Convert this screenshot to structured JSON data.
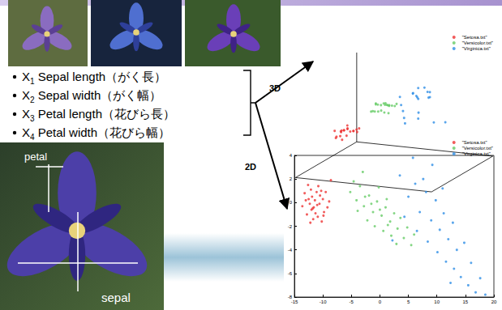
{
  "features": [
    {
      "symbol": "X",
      "index": "1",
      "label": "Sepal length（がく長）"
    },
    {
      "symbol": "X",
      "index": "2",
      "label": "Sepal width（がく幅）"
    },
    {
      "symbol": "X",
      "index": "3",
      "label": "Petal length（花びら長）"
    },
    {
      "symbol": "X",
      "index": "4",
      "label": "Petal width（花びら幅）"
    }
  ],
  "arrows": [
    "3D",
    "2D"
  ],
  "photo_labels": {
    "petal": "petal",
    "sepal": "sepal"
  },
  "chart_data": [
    {
      "type": "scatter3d",
      "legend": "upper right",
      "tick_labels": false,
      "xlim": [
        -15,
        20
      ],
      "ylim": [
        -6,
        4
      ],
      "zlim": [
        -25,
        20
      ],
      "series": [
        {
          "name": "\"Setosa.txt\"",
          "color": "#ee3333",
          "points": [
            [
              -12.5,
              0.3,
              -12
            ],
            [
              -11.8,
              -0.5,
              -10.5
            ],
            [
              -13.2,
              0.8,
              -13
            ],
            [
              -10.9,
              -1.2,
              -9.5
            ],
            [
              -12.1,
              1.1,
              -14
            ],
            [
              -11.4,
              0.2,
              -11
            ],
            [
              -9.8,
              -0.8,
              -8.5
            ],
            [
              -10.5,
              0.6,
              -12.5
            ],
            [
              -12.8,
              -1.0,
              -10
            ],
            [
              -11.0,
              -0.2,
              -13.5
            ],
            [
              -9.5,
              0.9,
              -11.5
            ],
            [
              -13.6,
              -0.3,
              -15
            ],
            [
              -10.2,
              -1.6,
              -9
            ],
            [
              -11.7,
              -1.4,
              -12
            ],
            [
              -12.3,
              -0.1,
              -16
            ],
            [
              -8.9,
              0.1,
              -10.5
            ],
            [
              -10.8,
              1.4,
              -14.5
            ],
            [
              -11.9,
              0.5,
              -9.8
            ],
            [
              -12.0,
              -0.6,
              -13.2
            ],
            [
              -10.0,
              0.3,
              -11.8
            ]
          ]
        },
        {
          "name": "\"Versicolor.txt\"",
          "color": "#66cc66",
          "points": [
            [
              -5.2,
              0.9,
              2
            ],
            [
              -4.1,
              0.2,
              3
            ],
            [
              -3.5,
              1.4,
              1.5
            ],
            [
              -2.8,
              -0.3,
              4
            ],
            [
              -1.9,
              0.6,
              2.5
            ],
            [
              -1.2,
              -0.8,
              5
            ],
            [
              -0.5,
              0.1,
              3.5
            ],
            [
              0.3,
              -1.1,
              6
            ],
            [
              1.0,
              -0.4,
              4.5
            ],
            [
              1.8,
              -1.6,
              7
            ],
            [
              2.5,
              -0.9,
              5.5
            ],
            [
              3.1,
              -2.2,
              8
            ],
            [
              -3.9,
              -0.7,
              1
            ],
            [
              -2.2,
              -1.5,
              3
            ],
            [
              -0.9,
              -2.0,
              4
            ],
            [
              0.6,
              -2.4,
              5
            ],
            [
              2.0,
              -2.8,
              6.5
            ],
            [
              3.6,
              -1.3,
              7.5
            ],
            [
              4.2,
              -3.0,
              6
            ],
            [
              -4.6,
              1.8,
              0.5
            ],
            [
              1.4,
              -1.9,
              3.8
            ]
          ]
        },
        {
          "name": "\"Virginica.txt\"",
          "color": "#2f8fe6",
          "points": [
            [
              3.5,
              2.3,
              9
            ],
            [
              5.0,
              0.5,
              10
            ],
            [
              6.2,
              1.6,
              11
            ],
            [
              7.0,
              -0.8,
              12.5
            ],
            [
              8.1,
              0.9,
              10.5
            ],
            [
              9.0,
              -1.5,
              13
            ],
            [
              9.8,
              0.2,
              12
            ],
            [
              10.5,
              -2.3,
              14
            ],
            [
              11.2,
              -0.9,
              11.5
            ],
            [
              12.0,
              -3.1,
              15
            ],
            [
              12.8,
              -1.7,
              13.5
            ],
            [
              13.5,
              -4.0,
              10
            ],
            [
              6.5,
              -2.4,
              9.5
            ],
            [
              8.4,
              -3.3,
              8.5
            ],
            [
              10.1,
              -4.2,
              7
            ],
            [
              11.6,
              -5.0,
              6
            ],
            [
              14.2,
              -4.5,
              8
            ],
            [
              16.8,
              -3.6,
              5
            ],
            [
              18.5,
              -2.8,
              4
            ],
            [
              4.3,
              -1.2,
              11
            ]
          ]
        }
      ]
    },
    {
      "type": "scatter",
      "legend": "upper right",
      "grid": false,
      "xlim": [
        -15,
        20
      ],
      "xticks": [
        -15,
        -10,
        -5,
        0,
        5,
        10,
        15,
        20
      ],
      "ylim": [
        -8,
        4
      ],
      "yticks": [
        -8,
        -6,
        -4,
        -2,
        0,
        2,
        4
      ],
      "series": [
        {
          "name": "\"Setosa.txt\"",
          "color": "#ee3333",
          "points": [
            [
              -12.5,
              0.3
            ],
            [
              -11.8,
              -0.5
            ],
            [
              -13.2,
              0.8
            ],
            [
              -10.9,
              -1.2
            ],
            [
              -12.1,
              1.1
            ],
            [
              -11.4,
              0.2
            ],
            [
              -9.8,
              -0.8
            ],
            [
              -10.5,
              0.6
            ],
            [
              -12.8,
              -1.0
            ],
            [
              -11.0,
              -0.2
            ],
            [
              -9.5,
              0.9
            ],
            [
              -13.6,
              -0.3
            ],
            [
              -10.2,
              -1.6
            ],
            [
              -11.7,
              -1.4
            ],
            [
              -12.3,
              -0.1
            ],
            [
              -8.9,
              0.1
            ],
            [
              -10.8,
              1.4
            ],
            [
              -11.9,
              0.5
            ],
            [
              -12.0,
              -0.6
            ],
            [
              -10.0,
              0.3
            ],
            [
              -13.0,
              0.2
            ],
            [
              -9.2,
              -0.4
            ],
            [
              -11.3,
              -0.9
            ],
            [
              -10.6,
              -0.1
            ],
            [
              -12.6,
              1.5
            ],
            [
              -11.1,
              0.9
            ],
            [
              -9.9,
              -1.1
            ],
            [
              -12.2,
              -1.7
            ],
            [
              -10.3,
              1.0
            ],
            [
              -11.6,
              -0.4
            ],
            [
              -8.6,
              1.9
            ]
          ]
        },
        {
          "name": "\"Versicolor.txt\"",
          "color": "#66cc66",
          "points": [
            [
              -5.2,
              0.9
            ],
            [
              -4.1,
              0.2
            ],
            [
              -3.5,
              1.4
            ],
            [
              -2.8,
              -0.3
            ],
            [
              -1.9,
              0.6
            ],
            [
              -1.2,
              -0.8
            ],
            [
              -0.5,
              0.1
            ],
            [
              0.3,
              -1.1
            ],
            [
              1.0,
              -0.4
            ],
            [
              1.8,
              -1.6
            ],
            [
              2.5,
              -0.9
            ],
            [
              3.1,
              -2.2
            ],
            [
              -3.9,
              -0.7
            ],
            [
              -2.2,
              -1.5
            ],
            [
              -0.9,
              -2.0
            ],
            [
              0.6,
              -2.4
            ],
            [
              2.0,
              -2.8
            ],
            [
              3.6,
              -1.3
            ],
            [
              4.2,
              -3.0
            ],
            [
              -4.6,
              1.8
            ],
            [
              -2.6,
              0.5
            ],
            [
              -1.5,
              -0.1
            ],
            [
              0.0,
              -0.6
            ],
            [
              1.4,
              -1.9
            ],
            [
              2.9,
              -3.5
            ],
            [
              4.8,
              -2.1
            ],
            [
              5.5,
              -3.6
            ],
            [
              -3.0,
              2.6
            ],
            [
              6.0,
              -2.7
            ],
            [
              -0.2,
              1.3
            ],
            [
              1.2,
              0.3
            ]
          ]
        },
        {
          "name": "\"Virginica.txt\"",
          "color": "#2f8fe6",
          "points": [
            [
              3.5,
              2.3
            ],
            [
              5.0,
              0.5
            ],
            [
              6.2,
              1.6
            ],
            [
              7.0,
              -0.8
            ],
            [
              8.1,
              0.9
            ],
            [
              9.0,
              -1.5
            ],
            [
              9.8,
              0.2
            ],
            [
              10.5,
              -2.3
            ],
            [
              11.2,
              -0.9
            ],
            [
              12.0,
              -3.1
            ],
            [
              12.8,
              -1.7
            ],
            [
              13.5,
              -4.0
            ],
            [
              6.5,
              -2.4
            ],
            [
              8.4,
              -3.3
            ],
            [
              10.1,
              -4.2
            ],
            [
              11.6,
              -5.0
            ],
            [
              13.0,
              -5.6
            ],
            [
              14.2,
              -6.3
            ],
            [
              15.5,
              -7.0
            ],
            [
              16.8,
              -7.6
            ],
            [
              18.5,
              -7.8
            ],
            [
              4.3,
              -1.2
            ],
            [
              7.6,
              2.0
            ],
            [
              14.8,
              -3.4
            ],
            [
              9.2,
              3.2
            ],
            [
              5.8,
              3.8
            ],
            [
              16.0,
              -5.1
            ],
            [
              12.4,
              -6.8
            ],
            [
              2.2,
              -3.2
            ],
            [
              17.6,
              -6.4
            ],
            [
              11.0,
              1.2
            ]
          ]
        }
      ]
    }
  ]
}
